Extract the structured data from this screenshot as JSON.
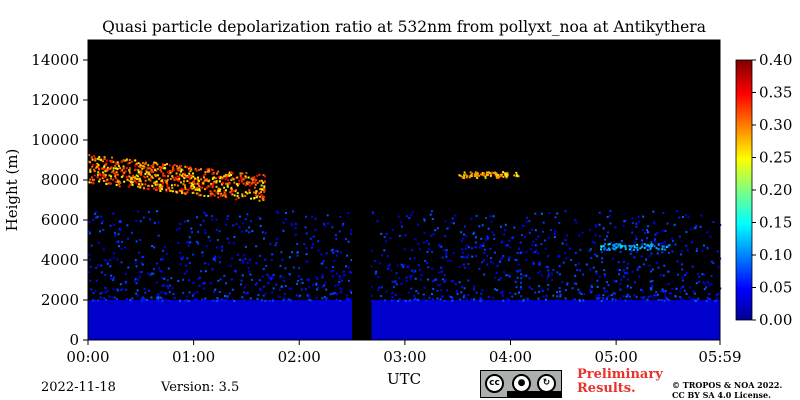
{
  "chart_data": {
    "type": "heatmap",
    "title": "Quasi particle depolarization ratio at 532nm from pollyxt_noa at Antikythera",
    "xlabel": "UTC",
    "ylabel": "Height (m)",
    "x_ticks": [
      "00:00",
      "01:00",
      "02:00",
      "03:00",
      "04:00",
      "05:00",
      "05:59"
    ],
    "x_range_minutes": [
      0,
      359
    ],
    "y_ticks": [
      0,
      2000,
      4000,
      6000,
      8000,
      10000,
      12000,
      14000
    ],
    "ylim": [
      0,
      15000
    ],
    "colorbar": {
      "ticks": [
        "0.00",
        "0.05",
        "0.10",
        "0.15",
        "0.20",
        "0.25",
        "0.30",
        "0.35",
        "0.40"
      ],
      "range": [
        0,
        0.4
      ],
      "colormap": "jet"
    },
    "background_color": "#000000",
    "features": {
      "boundary_layer": {
        "top_m": 2000,
        "value": 0.03
      },
      "aerosol_layer": {
        "from_m": 2000,
        "to_m": 6500,
        "value": 0.06
      },
      "cirrus_layer": {
        "start_min": 0,
        "end_min": 100,
        "base_m": 7100,
        "top_m": 9500,
        "value": 0.3
      },
      "thin_layer_1": {
        "start_min": 210,
        "end_min": 245,
        "height_m": 8300,
        "value": 0.28
      },
      "thin_layer_2": {
        "start_min": 290,
        "end_min": 330,
        "height_m": 4700,
        "value": 0.12
      },
      "data_gap": {
        "start_min": 150,
        "end_min": 161
      }
    }
  },
  "footer": {
    "date": "2022-11-18",
    "version": "Version: 3.5",
    "preliminary": [
      "Preliminary",
      "Results."
    ],
    "copyright": [
      "© TROPOS & NOA 2022.",
      "CC BY SA 4.0 License."
    ]
  }
}
